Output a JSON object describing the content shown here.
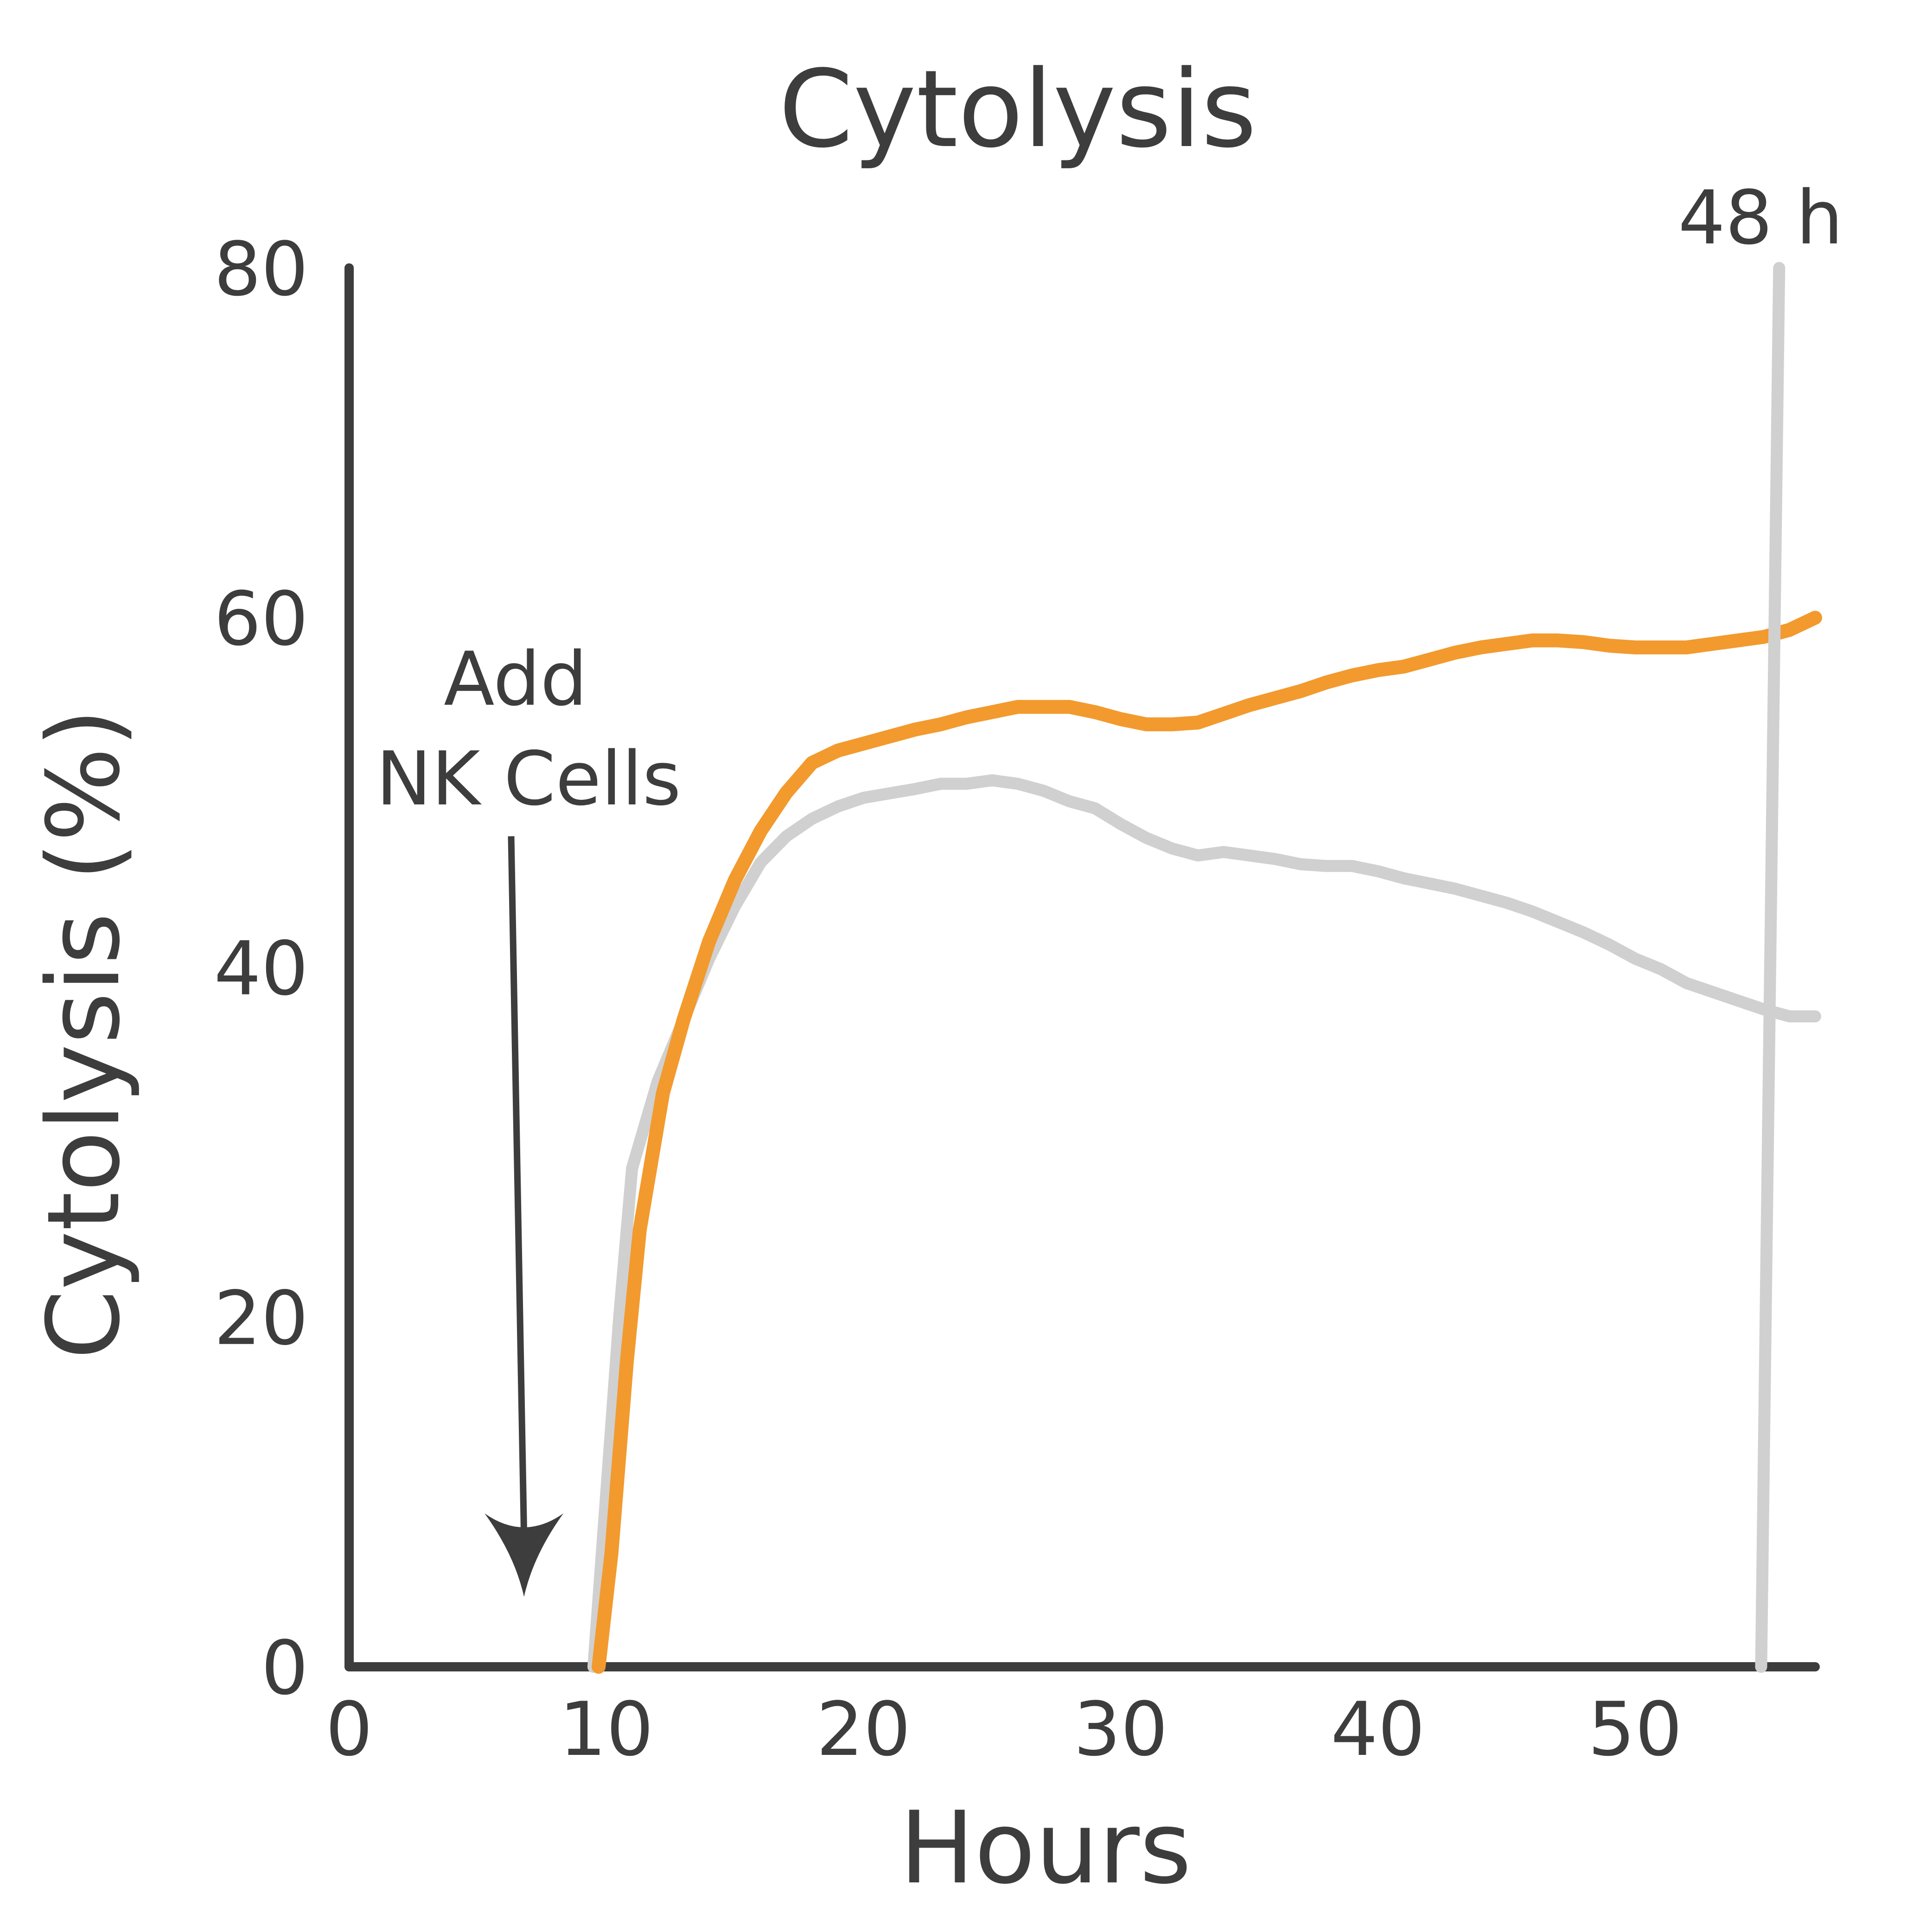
{
  "chart_data": {
    "type": "line",
    "title": "Cytolysis",
    "xlabel": "Hours",
    "ylabel": "Cytolysis (%)",
    "xlim": [
      0,
      57
    ],
    "ylim": [
      0,
      80
    ],
    "xticks": [
      0,
      10,
      20,
      30,
      40,
      50
    ],
    "yticks": [
      0,
      20,
      40,
      60,
      80
    ],
    "grid": false,
    "legend": "none",
    "series": [
      {
        "color": "#d0d0d0",
        "x": [
          9.5,
          10,
          10.5,
          11,
          12,
          13,
          14,
          15,
          16,
          17,
          18,
          19,
          20,
          22,
          23,
          24,
          25,
          26,
          27,
          28,
          29,
          30,
          31,
          32,
          33,
          34,
          35,
          36,
          37,
          38,
          39,
          40,
          41,
          42,
          43,
          44,
          45,
          46,
          47,
          48,
          49,
          50,
          51,
          52,
          53,
          54,
          55,
          56,
          57
        ],
        "y": [
          0,
          10,
          20,
          28.5,
          33.5,
          37,
          40.5,
          43.5,
          46,
          47.5,
          48.5,
          49.2,
          49.7,
          50.2,
          50.5,
          50.5,
          50.7,
          50.5,
          50.1,
          49.5,
          49.1,
          48.2,
          47.4,
          46.8,
          46.4,
          46.6,
          46.4,
          46.2,
          45.9,
          45.8,
          45.8,
          45.5,
          45.1,
          44.8,
          44.5,
          44.1,
          43.7,
          43.2,
          42.6,
          42.0,
          41.3,
          40.5,
          39.9,
          39.1,
          38.6,
          38.1,
          37.6,
          37.2,
          37.2
        ]
      },
      {
        "color": "#f29a2e",
        "x": [
          9.7,
          10.2,
          10.8,
          11.3,
          12.2,
          13,
          14,
          15,
          16,
          17,
          18,
          19,
          20,
          22,
          23,
          24,
          25,
          26,
          27,
          28,
          29,
          30,
          31,
          32,
          33,
          34,
          35,
          36,
          37,
          38,
          39,
          40,
          41,
          42,
          43,
          44,
          45,
          46,
          47,
          48,
          49,
          50,
          51,
          52,
          53,
          54,
          55,
          56,
          57
        ],
        "y": [
          0,
          6.5,
          17.5,
          25,
          32.8,
          37,
          41.5,
          45,
          47.8,
          50,
          51.7,
          52.4,
          52.8,
          53.6,
          53.9,
          54.3,
          54.6,
          54.9,
          54.9,
          54.9,
          54.6,
          54.2,
          53.9,
          53.9,
          54.0,
          54.5,
          55.0,
          55.4,
          55.8,
          56.3,
          56.7,
          57.0,
          57.2,
          57.6,
          58.0,
          58.3,
          58.5,
          58.7,
          58.7,
          58.6,
          58.4,
          58.3,
          58.3,
          58.3,
          58.5,
          58.7,
          58.9,
          59.3,
          60.0
        ]
      }
    ],
    "annotations": [
      {
        "text_line1": "Add",
        "text_line2": "NK Cells",
        "arrow_x_start": 6.3,
        "arrow_y_start": 47.5,
        "arrow_x_end": 6.8,
        "arrow_y_end": 4
      },
      {
        "text": "48 h",
        "line_x_top": 55.6,
        "line_y_top": 80,
        "line_x_bottom": 54.9,
        "line_y_bottom": 0
      }
    ],
    "colors": {
      "axis": "#3d3d3d",
      "marker_line": "#d0d0d0"
    }
  }
}
